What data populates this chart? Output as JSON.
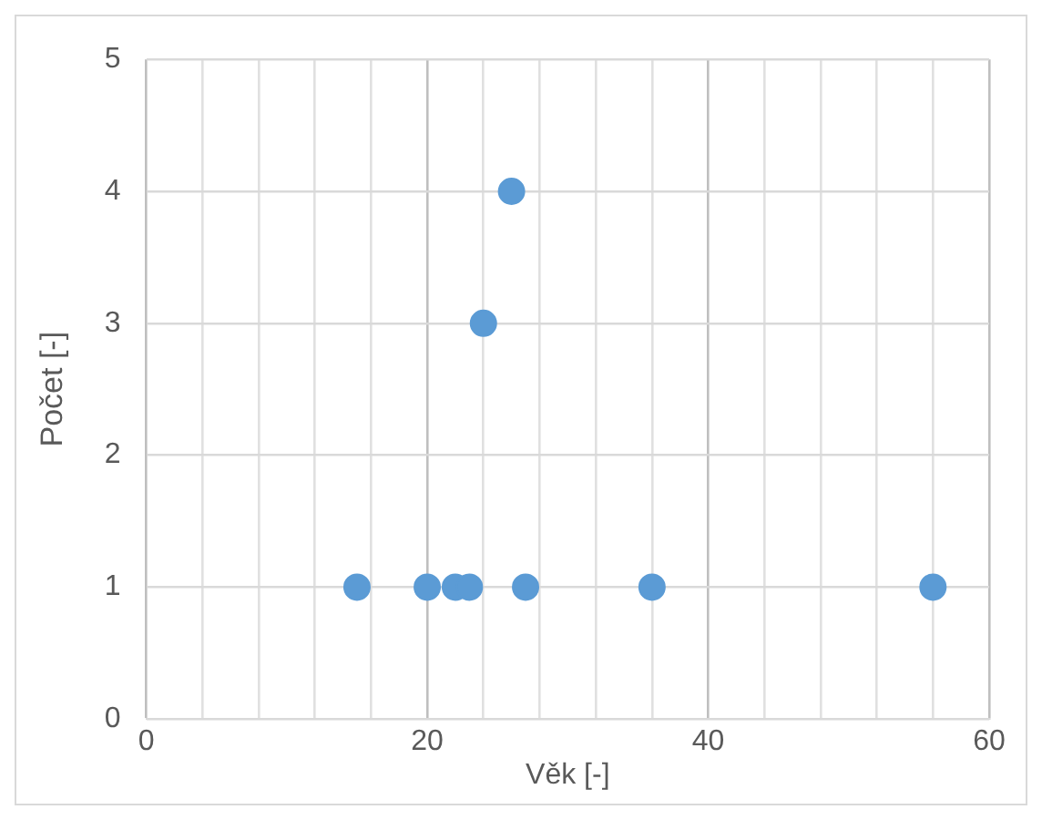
{
  "chart_data": {
    "type": "scatter",
    "xlabel": "Věk [-]",
    "ylabel": "Počet [-]",
    "x": [
      15,
      20,
      22,
      23,
      24,
      26,
      27,
      36,
      56
    ],
    "values": [
      1,
      1,
      1,
      1,
      3,
      4,
      1,
      1,
      1
    ],
    "color": "#5b9bd5",
    "xlim": [
      0,
      60
    ],
    "xticks": [
      0,
      {
        "value": 4,
        "label": null
      },
      {
        "value": 8,
        "label": null
      },
      {
        "value": 12,
        "label": null
      },
      {
        "value": 16,
        "label": null
      },
      20,
      {
        "value": 24,
        "label": null
      },
      {
        "value": 28,
        "label": null
      },
      {
        "value": 32,
        "label": null
      },
      {
        "value": 36,
        "label": null
      },
      40,
      {
        "value": 44,
        "label": null
      },
      {
        "value": 48,
        "label": null
      },
      {
        "value": 52,
        "label": null
      },
      {
        "value": 56,
        "label": null
      },
      60
    ],
    "ylim": [
      0,
      5
    ],
    "yticks": [
      0,
      1,
      2,
      3,
      4,
      5
    ],
    "grid": true,
    "marker": "circle",
    "legend": false
  }
}
